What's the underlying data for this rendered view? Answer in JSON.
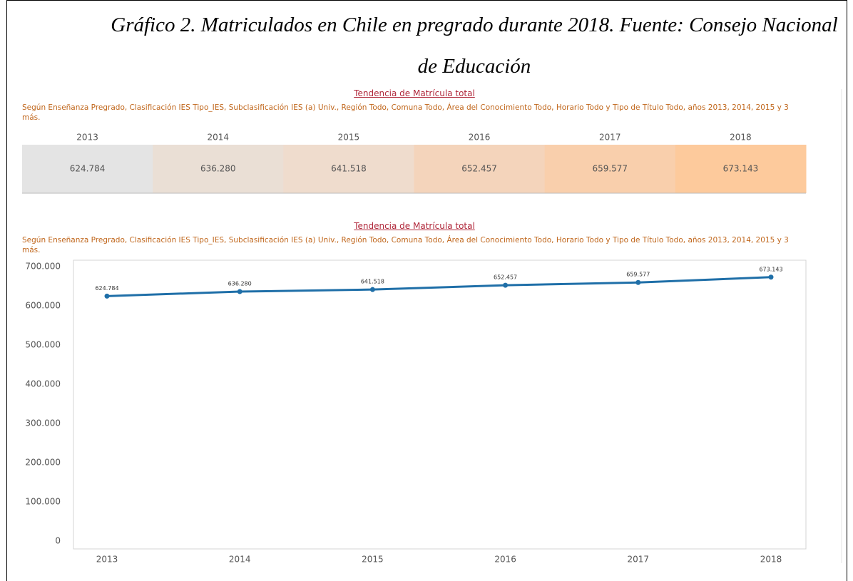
{
  "caption": "Gráfico 2. Matriculados en Chile en pregrado durante 2018. Fuente: Consejo Nacional de Educación",
  "chart_data": [
    {
      "type": "heatmap",
      "title": "Tendencia de Matrícula total",
      "subtitle": "Según Enseñanza Pregrado, Clasificación IES Tipo_IES, Subclasificación IES (a) Univ., Región Todo, Comuna Todo, Área del Conocimiento Todo, Horario Todo  y Tipo de Título Todo, años 2013, 2014, 2015 y 3 más.",
      "categories": [
        "2013",
        "2014",
        "2015",
        "2016",
        "2017",
        "2018"
      ],
      "values": [
        624784,
        636280,
        641518,
        652457,
        659577,
        673143
      ],
      "value_labels": [
        "624.784",
        "636.280",
        "641.518",
        "652.457",
        "659.577",
        "673.143"
      ],
      "colors": [
        "#e4e4e4",
        "#eadfd5",
        "#efdccd",
        "#f4d4bb",
        "#f9cfac",
        "#fdca9c"
      ]
    },
    {
      "type": "line",
      "title": "Tendencia de Matrícula total",
      "subtitle": "Según Enseñanza Pregrado, Clasificación IES Tipo_IES, Subclasificación IES (a) Univ., Región Todo, Comuna Todo, Área del Conocimiento Todo, Horario Todo  y Tipo de Título Todo, años 2013, 2014, 2015 y 3 más.",
      "categories": [
        "2013",
        "2014",
        "2015",
        "2016",
        "2017",
        "2018"
      ],
      "values": [
        624784,
        636280,
        641518,
        652457,
        659577,
        673143
      ],
      "value_labels": [
        "624.784",
        "636.280",
        "641.518",
        "652.457",
        "659.577",
        "673.143"
      ],
      "color": "#1f6fa8",
      "ylim": [
        0,
        700000
      ],
      "yticks": [
        0,
        {
          "value": 100000,
          "label": "100.000"
        },
        {
          "value": 200000,
          "label": "200.000"
        },
        {
          "value": 300000,
          "label": "300.000"
        },
        {
          "value": 400000,
          "label": "400.000"
        },
        {
          "value": 500000,
          "label": "500.000"
        },
        {
          "value": 600000,
          "label": "600.000"
        },
        {
          "value": 700000,
          "label": "700.000"
        }
      ]
    }
  ]
}
